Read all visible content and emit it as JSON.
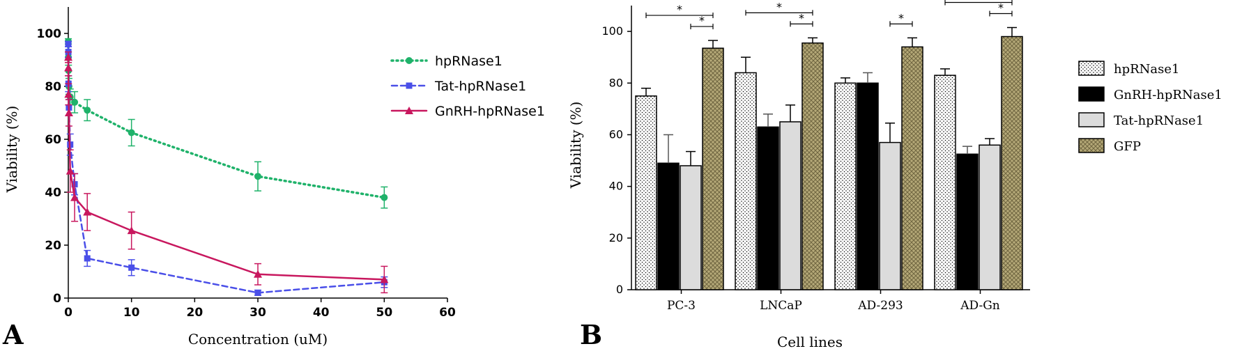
{
  "chart_data": [
    {
      "panel_label": "A",
      "type": "line",
      "xlabel": "Concentration (uM)",
      "ylabel": "Viability (%)",
      "xlim": [
        0,
        60
      ],
      "ylim": [
        0,
        110
      ],
      "xticks": [
        "0",
        "10",
        "20",
        "30",
        "40",
        "50",
        "60"
      ],
      "yticks": [
        "0",
        "20",
        "40",
        "60",
        "80",
        "100"
      ],
      "legend_position": "top-right",
      "grid": false,
      "series": [
        {
          "name": "hpRNase1",
          "color": "#1fb26a",
          "line": "dotted",
          "marker": "circle",
          "x": [
            0,
            0.01,
            0.03,
            0.1,
            0.3,
            1,
            3,
            10,
            30,
            50
          ],
          "y": [
            97,
            91,
            86,
            80,
            76,
            74,
            71,
            62.5,
            46,
            38
          ],
          "err": [
            1,
            2,
            2,
            3,
            3,
            4,
            4,
            5,
            5.5,
            4
          ]
        },
        {
          "name": "Tat-hpRNase1",
          "color": "#4a4fe8",
          "line": "dashed",
          "marker": "square",
          "x": [
            0,
            0.01,
            0.03,
            0.1,
            0.3,
            1,
            3,
            10,
            30,
            50
          ],
          "y": [
            96,
            93,
            81,
            72,
            58,
            43,
            15,
            11.5,
            2,
            6
          ],
          "err": [
            1,
            2,
            3,
            3,
            4,
            4,
            3,
            3,
            1,
            2
          ]
        },
        {
          "name": "GnRH-hpRNase1",
          "color": "#c8175e",
          "line": "solid",
          "marker": "triangle",
          "x": [
            0,
            0.01,
            0.03,
            0.1,
            0.3,
            1,
            3,
            10,
            30,
            50
          ],
          "y": [
            91,
            87,
            77,
            70,
            48,
            38,
            32.5,
            25.5,
            9,
            7
          ],
          "err": [
            2,
            3,
            4,
            5,
            8,
            9,
            7,
            7,
            4,
            5
          ]
        }
      ]
    },
    {
      "panel_label": "B",
      "type": "bar",
      "xlabel": "Cell lines",
      "ylabel": "Viability (%)",
      "ylim": [
        0,
        110
      ],
      "yticks": [
        "0",
        "20",
        "40",
        "60",
        "80",
        "100"
      ],
      "categories": [
        "PC-3",
        "LNCaP",
        "AD-293",
        "AD-Gn"
      ],
      "legend_position": "right",
      "grid": false,
      "significance_marker": "*",
      "series": [
        {
          "name": "hpRNase1",
          "pattern": "dotted",
          "color": "#ffffff",
          "values": [
            75,
            84,
            80,
            83
          ],
          "err": [
            3,
            6,
            2,
            2.5
          ]
        },
        {
          "name": "GnRH-hpRNase1",
          "pattern": "solid",
          "color": "#000000",
          "values": [
            49,
            63,
            80,
            52.5
          ],
          "err": [
            11,
            5,
            4,
            3
          ]
        },
        {
          "name": "Tat-hpRNase1",
          "pattern": "solid",
          "color": "#dcdcdc",
          "values": [
            48,
            65,
            57,
            56
          ],
          "err": [
            5.5,
            6.5,
            7.5,
            2.5
          ]
        },
        {
          "name": "GFP",
          "pattern": "crosshatch",
          "color": "#b5a978",
          "values": [
            93.5,
            95.5,
            94,
            98
          ],
          "err": [
            3,
            2,
            3.5,
            3.5
          ]
        }
      ]
    }
  ]
}
